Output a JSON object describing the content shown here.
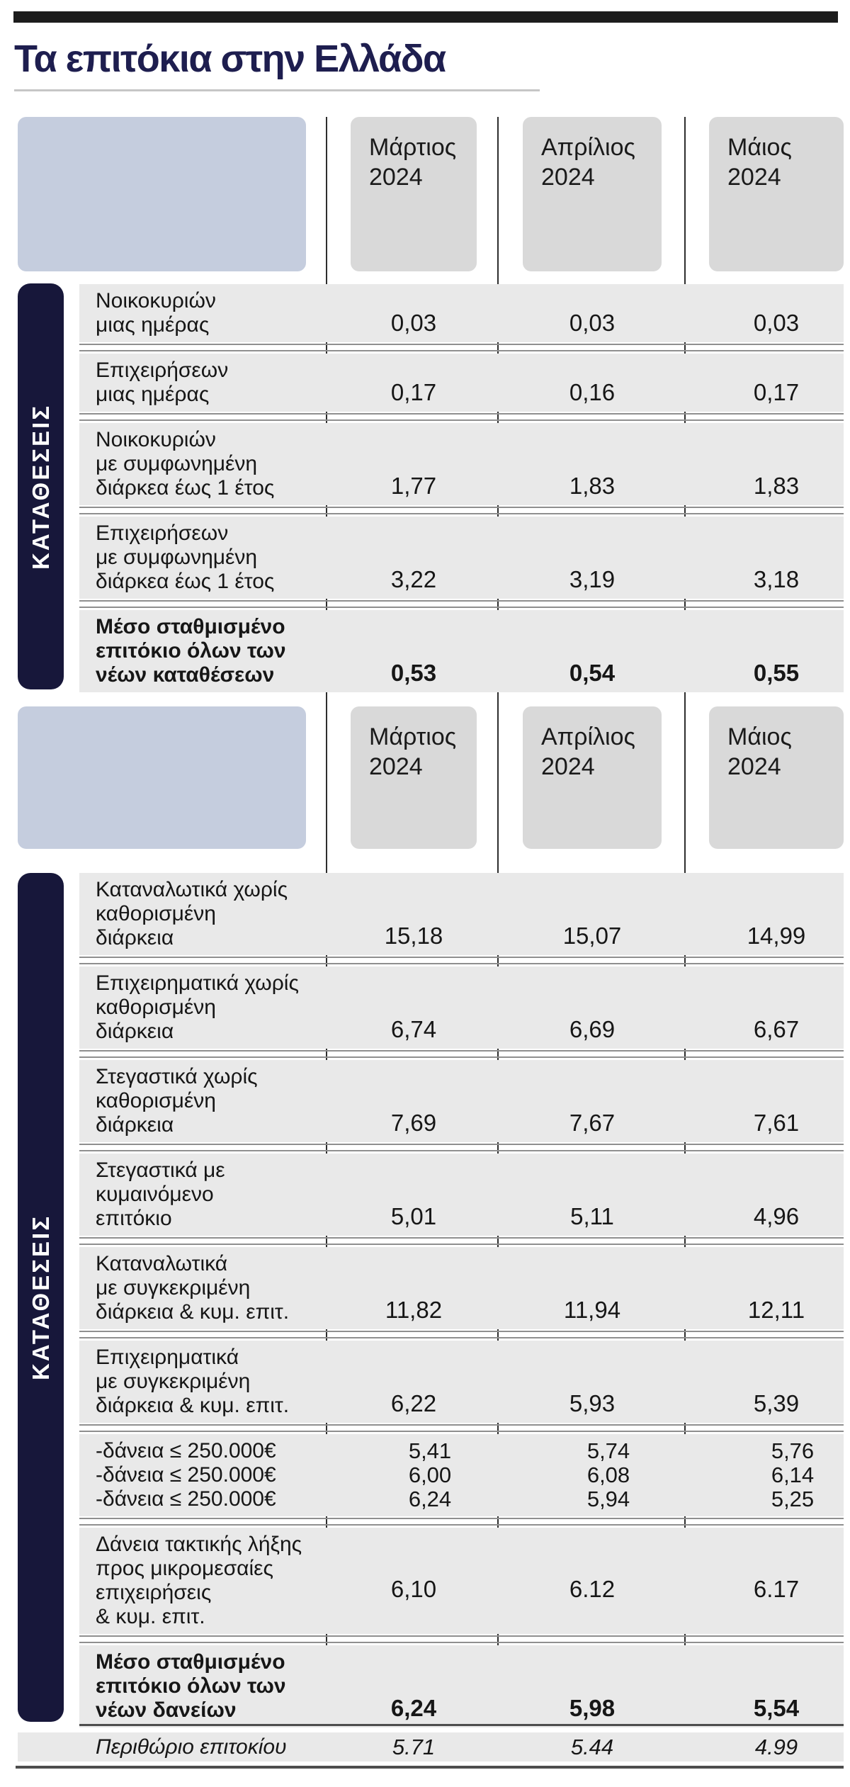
{
  "page": {
    "title": "Τα επιτόκια στην Ελλάδα"
  },
  "months": [
    "Μάρτιος\n2024",
    "Απρίλιος\n2024",
    "Μάιος\n2024"
  ],
  "colors": {
    "title_navy": "#1e1e4f",
    "side_bar_navy": "#17173a",
    "corner_cell_blue": "#c5cdde",
    "month_cell_gray": "#d9d9d9",
    "row_gray": "#e9e9e9",
    "rule_dark": "#1c1c1c"
  },
  "sections": [
    {
      "side_label": "ΚΑΤΑΘΕΣΕΙΣ",
      "rows": [
        {
          "label": "Νοικοκυριών\nμιας ημέρας",
          "values": [
            "0,03",
            "0,03",
            "0,03"
          ],
          "bold": false
        },
        {
          "label": "Επιχειρήσεων\nμιας ημέρας",
          "values": [
            "0,17",
            "0,16",
            "0,17"
          ],
          "bold": false
        },
        {
          "label": "Νοικοκυριών\nμε συμφωνημένη\nδιάρκεα έως 1 έτος",
          "values": [
            "1,77",
            "1,83",
            "1,83"
          ],
          "bold": false
        },
        {
          "label": "Επιχειρήσεων\nμε συμφωνημένη\nδιάρκεα έως 1 έτος",
          "values": [
            "3,22",
            "3,19",
            "3,18"
          ],
          "bold": false
        },
        {
          "label": "Μέσο σταθμισμένο\nεπιτόκιο όλων των\nνέων καταθέσεων",
          "values": [
            "0,53",
            "0,54",
            "0,55"
          ],
          "bold": true
        }
      ]
    },
    {
      "side_label": "ΚΑΤΑΘΕΣΕΙΣ",
      "rows": [
        {
          "label": "Καταναλωτικά χωρίς\nκαθορισμένη\nδιάρκεια",
          "values": [
            "15,18",
            "15,07",
            "14,99"
          ],
          "bold": false
        },
        {
          "label": "Επιχειρηματικά χωρίς\nκαθορισμένη\nδιάρκεια",
          "values": [
            "6,74",
            "6,69",
            "6,67"
          ],
          "bold": false
        },
        {
          "label": "Στεγαστικά χωρίς\nκαθορισμένη\nδιάρκεια",
          "values": [
            "7,69",
            "7,67",
            "7,61"
          ],
          "bold": false
        },
        {
          "label": "Στεγαστικά με\nκυμαινόμενο\nεπιτόκιο",
          "values": [
            "5,01",
            "5,11",
            "4,96"
          ],
          "bold": false
        },
        {
          "label": "Καταναλωτικά\nμε συγκεκριμένη\nδιάρκεια & κυμ. επιτ.",
          "values": [
            "11,82",
            "11,94",
            "12,11"
          ],
          "bold": false
        },
        {
          "label": "Επιχειρηματικά\nμε συγκεκριμένη\nδιάρκεια & κυμ. επιτ.",
          "values": [
            "6,22",
            "5,93",
            "5,39"
          ],
          "bold": false
        },
        {
          "multi": true,
          "lines": [
            {
              "label": "-δάνεια ≤ 250.000€",
              "values": [
                "5,41",
                "5,74",
                "5,76"
              ]
            },
            {
              "label": "-δάνεια ≤ 250.000€",
              "values": [
                "6,00",
                "6,08",
                "6,14"
              ]
            },
            {
              "label": "-δάνεια ≤ 250.000€",
              "values": [
                "6,24",
                "5,94",
                "5,25"
              ]
            }
          ]
        },
        {
          "label": "Δάνεια τακτικής λήξης\nπρος μικρομεσαίες\nεπιχειρήσεις\n& κυμ. επιτ.",
          "values": [
            "6,10",
            "6.12",
            "6.17"
          ],
          "bold": false,
          "value_line": 3
        },
        {
          "label": "Μέσο σταθμισμένο\nεπιτόκιο όλων των\nνέων δανείων",
          "values": [
            "6,24",
            "5,98",
            "5,54"
          ],
          "bold": true
        }
      ]
    }
  ],
  "footer_row": {
    "label": "Περιθώριο επιτοκίου",
    "values": [
      "5.71",
      "5.44",
      "4.99"
    ]
  },
  "chart_data": {
    "type": "table",
    "title": "Τα επιτόκια στην Ελλάδα",
    "columns": [
      "Μάρτιος 2024",
      "Απρίλιος 2024",
      "Μάιος 2024"
    ],
    "rows": [
      {
        "section": "ΚΑΤΑΘΕΣΕΙΣ",
        "label": "Νοικοκυριών μιας ημέρας",
        "values": [
          0.03,
          0.03,
          0.03
        ]
      },
      {
        "section": "ΚΑΤΑΘΕΣΕΙΣ",
        "label": "Επιχειρήσεων μιας ημέρας",
        "values": [
          0.17,
          0.16,
          0.17
        ]
      },
      {
        "section": "ΚΑΤΑΘΕΣΕΙΣ",
        "label": "Νοικοκυριών με συμφωνημένη διάρκεα έως 1 έτος",
        "values": [
          1.77,
          1.83,
          1.83
        ]
      },
      {
        "section": "ΚΑΤΑΘΕΣΕΙΣ",
        "label": "Επιχειρήσεων με συμφωνημένη διάρκεα έως 1 έτος",
        "values": [
          3.22,
          3.19,
          3.18
        ]
      },
      {
        "section": "ΚΑΤΑΘΕΣΕΙΣ",
        "label": "Μέσο σταθμισμένο επιτόκιο όλων των νέων καταθέσεων",
        "values": [
          0.53,
          0.54,
          0.55
        ]
      },
      {
        "section": "ΚΑΤΑΘΕΣΕΙΣ",
        "label": "Καταναλωτικά χωρίς καθορισμένη διάρκεια",
        "values": [
          15.18,
          15.07,
          14.99
        ]
      },
      {
        "section": "ΚΑΤΑΘΕΣΕΙΣ",
        "label": "Επιχειρηματικά χωρίς καθορισμένη διάρκεια",
        "values": [
          6.74,
          6.69,
          6.67
        ]
      },
      {
        "section": "ΚΑΤΑΘΕΣΕΙΣ",
        "label": "Στεγαστικά χωρίς καθορισμένη διάρκεια",
        "values": [
          7.69,
          7.67,
          7.61
        ]
      },
      {
        "section": "ΚΑΤΑΘΕΣΕΙΣ",
        "label": "Στεγαστικά με κυμαινόμενο επιτόκιο",
        "values": [
          5.01,
          5.11,
          4.96
        ]
      },
      {
        "section": "ΚΑΤΑΘΕΣΕΙΣ",
        "label": "Καταναλωτικά με συγκεκριμένη διάρκεια & κυμ. επιτ.",
        "values": [
          11.82,
          11.94,
          12.11
        ]
      },
      {
        "section": "ΚΑΤΑΘΕΣΕΙΣ",
        "label": "Επιχειρηματικά με συγκεκριμένη διάρκεια & κυμ. επιτ.",
        "values": [
          6.22,
          5.93,
          5.39
        ]
      },
      {
        "section": "ΚΑΤΑΘΕΣΕΙΣ",
        "label": "-δάνεια ≤ 250.000€",
        "values": [
          5.41,
          5.74,
          5.76
        ]
      },
      {
        "section": "ΚΑΤΑΘΕΣΕΙΣ",
        "label": "-δάνεια ≤ 250.000€",
        "values": [
          6.0,
          6.08,
          6.14
        ]
      },
      {
        "section": "ΚΑΤΑΘΕΣΕΙΣ",
        "label": "-δάνεια ≤ 250.000€",
        "values": [
          6.24,
          5.94,
          5.25
        ]
      },
      {
        "section": "ΚΑΤΑΘΕΣΕΙΣ",
        "label": "Δάνεια τακτικής λήξης προς μικρομεσαίες επιχειρήσεις & κυμ. επιτ.",
        "values": [
          6.1,
          6.12,
          6.17
        ]
      },
      {
        "section": "ΚΑΤΑΘΕΣΕΙΣ",
        "label": "Μέσο σταθμισμένο επιτόκιο όλων των νέων δανείων",
        "values": [
          6.24,
          5.98,
          5.54
        ]
      },
      {
        "section": "",
        "label": "Περιθώριο επιτοκίου",
        "values": [
          5.71,
          5.44,
          4.99
        ]
      }
    ]
  }
}
